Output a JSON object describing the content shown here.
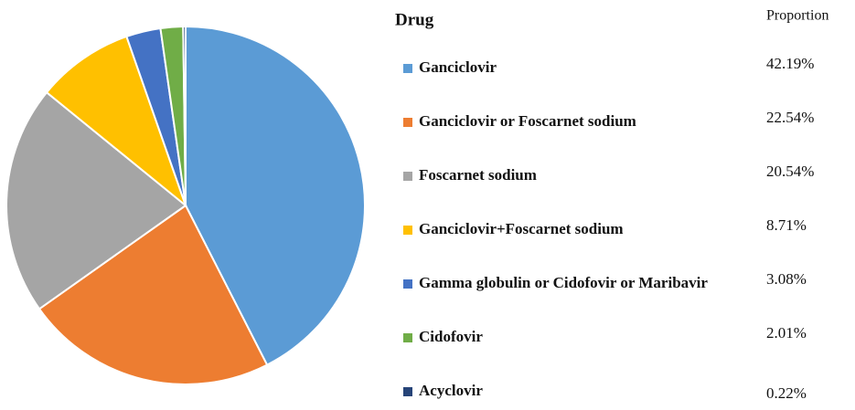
{
  "chart_data": {
    "type": "pie",
    "legend_title": "Drug",
    "value_header": "Proportion",
    "categories": [
      "Ganciclovir",
      "Ganciclovir or Foscarnet sodium",
      "Foscarnet sodium",
      "Ganciclovir+Foscarnet sodium",
      "Gamma globulin or Cidofovir or Maribavir",
      "Cidofovir",
      "Acyclovir"
    ],
    "values": [
      42.19,
      22.54,
      20.54,
      8.71,
      3.08,
      2.01,
      0.22
    ],
    "value_labels": [
      "42.19%",
      "22.54%",
      "20.54%",
      "8.71%",
      "3.08%",
      "2.01%",
      "0.22%"
    ],
    "colors": [
      "#5b9bd5",
      "#ed7d31",
      "#a5a5a5",
      "#ffc000",
      "#4472c4",
      "#70ad47",
      "#264478"
    ]
  }
}
